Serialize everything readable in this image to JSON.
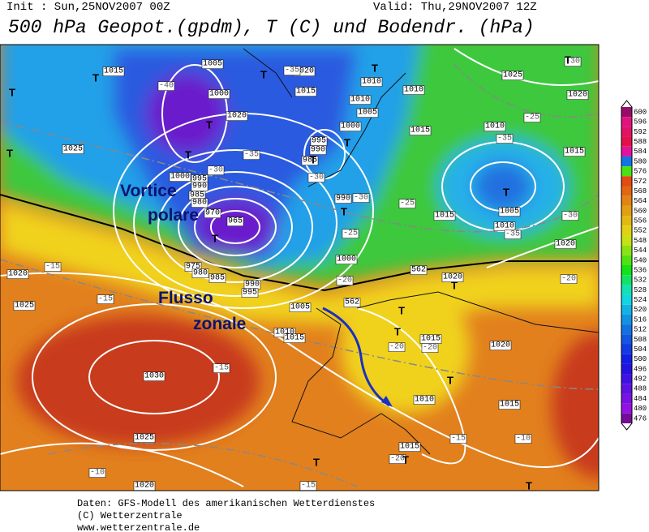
{
  "header": {
    "init": "Init : Sun,25NOV2007 00Z",
    "valid": "Valid: Thu,29NOV2007 12Z",
    "title": "500 hPa Geopot.(gpdm), T (C) und Bodendr. (hPa)"
  },
  "annotations": {
    "vortex": [
      "Vortice",
      "polare"
    ],
    "zonal": [
      "Flusso",
      "zonale"
    ]
  },
  "isobar_labels": [
    1015,
    1020,
    1005,
    1010,
    1010,
    1015,
    1000,
    1020,
    1010,
    1005,
    1000,
    995,
    990,
    985,
    1015,
    1025,
    1010,
    1015,
    1025,
    1020,
    1000,
    995,
    990,
    985,
    980,
    970,
    965,
    975,
    980,
    985,
    990,
    995,
    990,
    1000,
    1015,
    1005,
    1010,
    1020,
    1020,
    1025,
    1005,
    1010,
    1015,
    1020,
    1015,
    1020,
    1030,
    1010,
    1015,
    1025,
    1015,
    1020,
    562,
    562
  ],
  "center_labels": [
    "T",
    "T",
    "T",
    "T",
    "T",
    "T",
    "T",
    "T",
    "T",
    "T",
    "T",
    "T",
    "T",
    "T",
    "T",
    "T",
    "T",
    "T",
    "T",
    "T"
  ],
  "temperature_labels": [
    -40,
    -35,
    -35,
    -30,
    -30,
    -30,
    -25,
    -35,
    -35,
    -30,
    -30,
    -25,
    -20,
    -15,
    -15,
    -15,
    -20,
    -20,
    -15,
    -10,
    -20,
    -10,
    -15,
    -20,
    -25
  ],
  "colorbar": {
    "ticks": [
      600,
      596,
      592,
      588,
      584,
      580,
      576,
      572,
      568,
      564,
      560,
      556,
      552,
      548,
      544,
      540,
      536,
      532,
      528,
      524,
      520,
      516,
      512,
      508,
      504,
      500,
      496,
      492,
      488,
      484,
      480,
      476
    ]
  },
  "footer": [
    "Daten: GFS-Modell des amerikanischen Wetterdienstes",
    "(C) Wetterzentrale",
    "www.wetterzentrale.de"
  ]
}
